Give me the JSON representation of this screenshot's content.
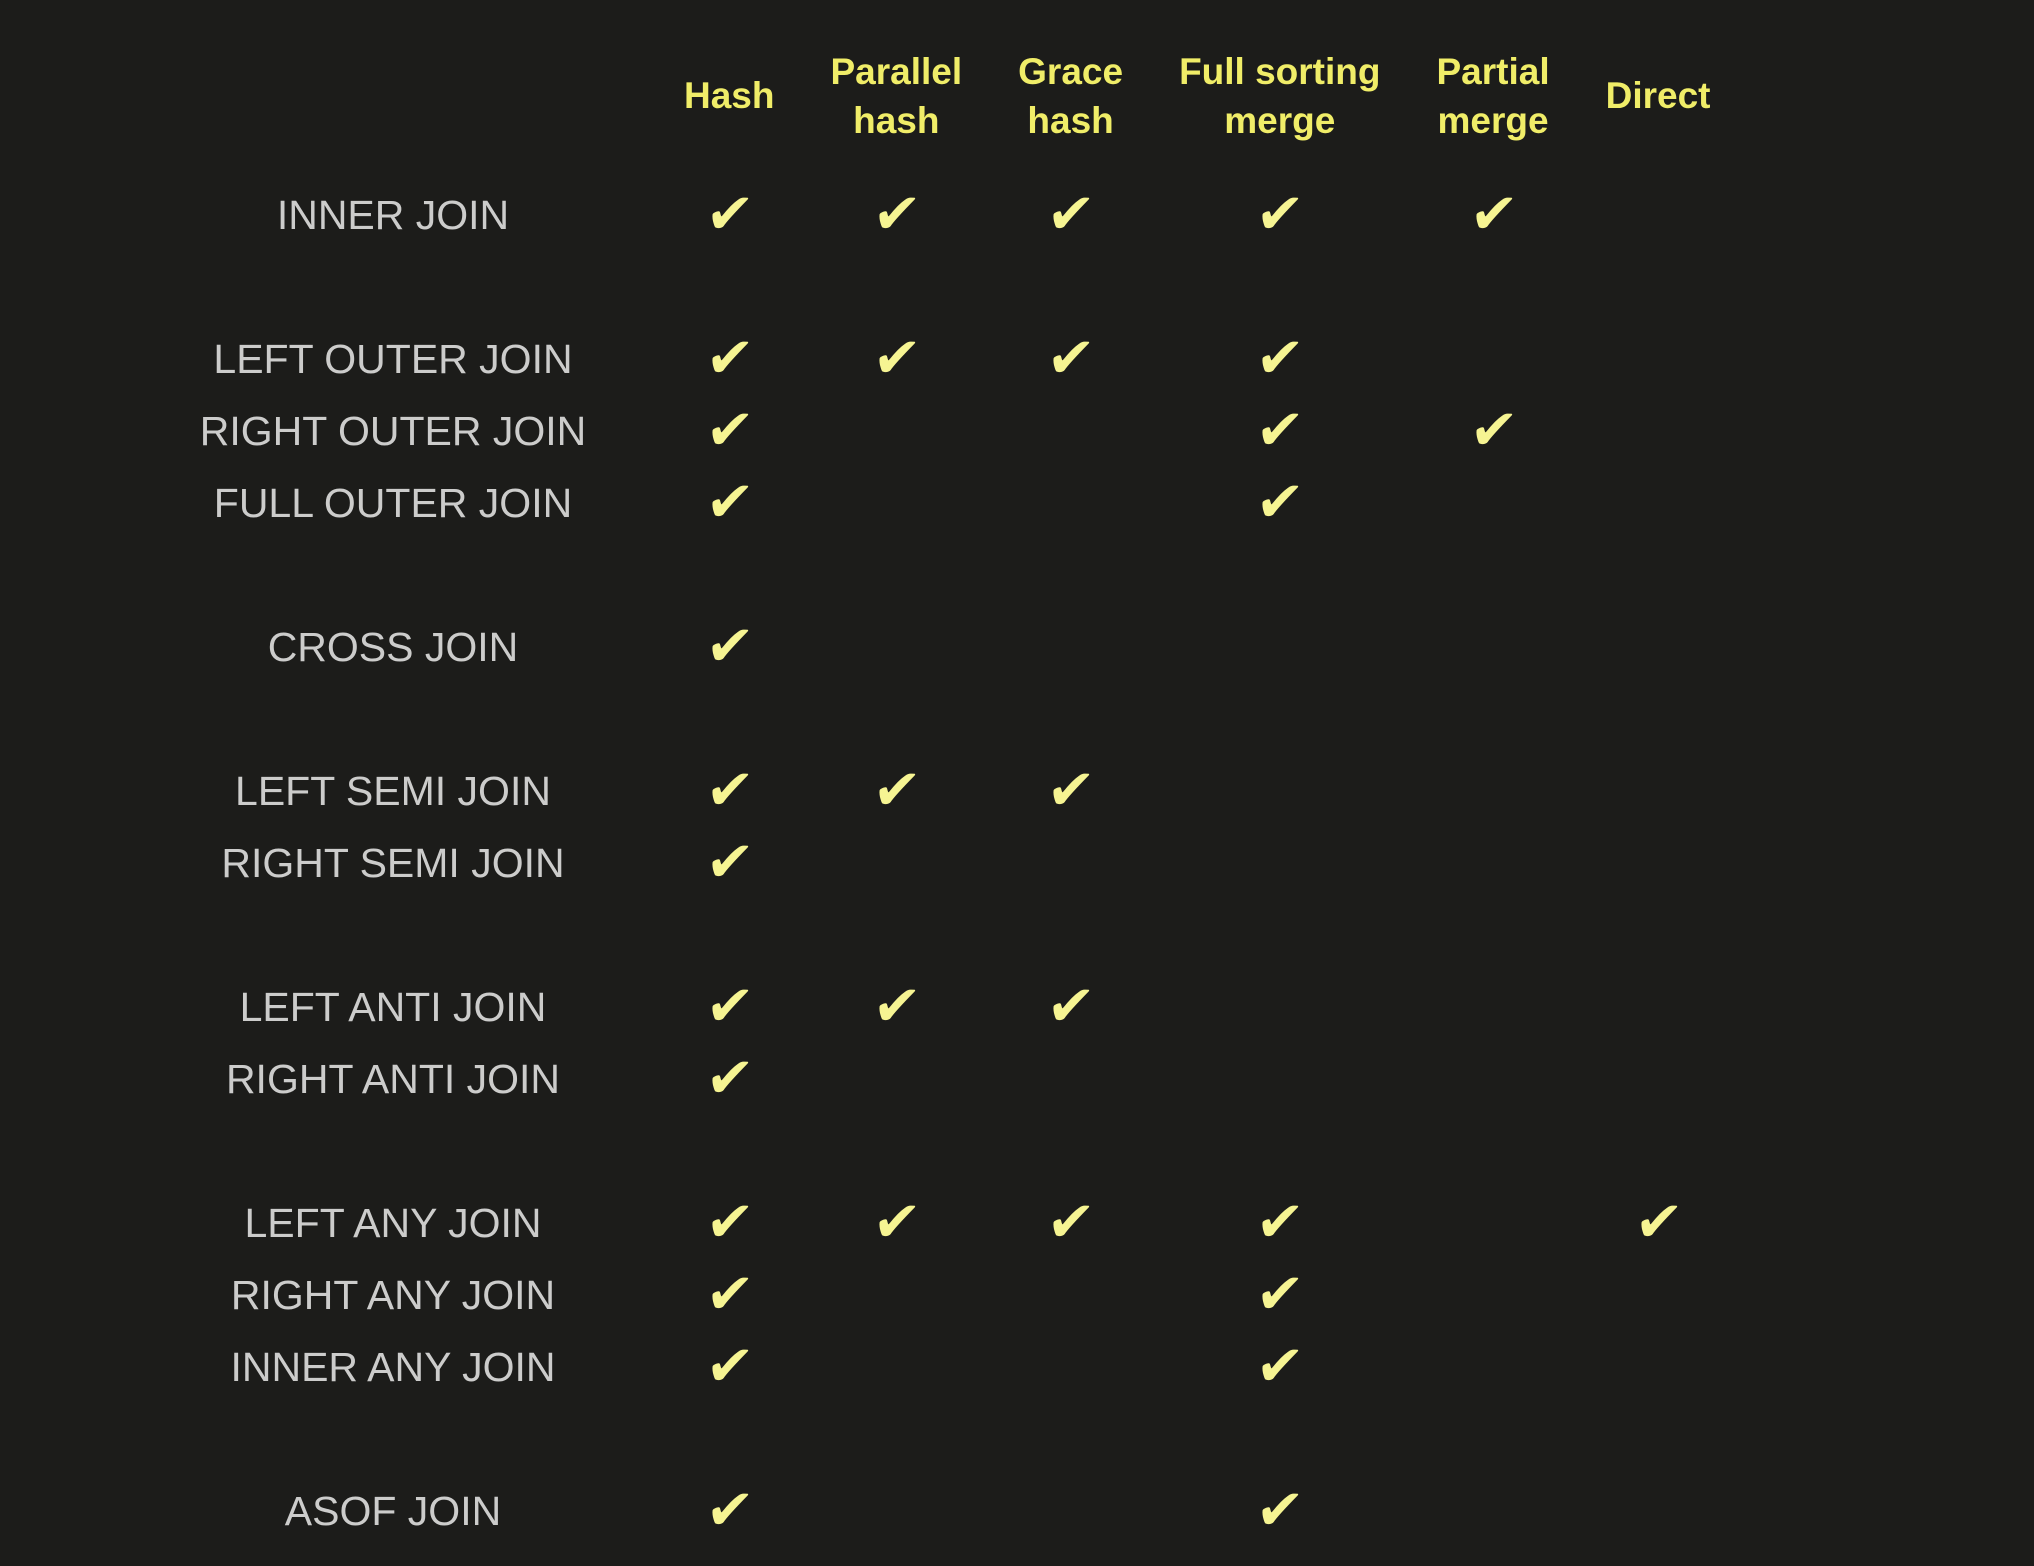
{
  "colors": {
    "background": "#1c1c1a",
    "header_text": "#f0ed68",
    "check": "#f6f492",
    "row_label": "#cccccb"
  },
  "matrix": {
    "check_glyph": "✔",
    "corner_label": "",
    "columns": [
      {
        "id": "hash",
        "label": "Hash",
        "lines": [
          "Hash"
        ]
      },
      {
        "id": "parallel-hash",
        "label": "Parallel hash",
        "lines": [
          "Parallel",
          "hash"
        ]
      },
      {
        "id": "grace-hash",
        "label": "Grace hash",
        "lines": [
          "Grace",
          "hash"
        ]
      },
      {
        "id": "full-sorting-merge",
        "label": "Full sorting merge",
        "lines": [
          "Full sorting",
          "merge"
        ]
      },
      {
        "id": "partial-merge",
        "label": "Partial merge",
        "lines": [
          "Partial",
          "merge"
        ]
      },
      {
        "id": "direct",
        "label": "Direct",
        "lines": [
          "Direct"
        ]
      }
    ],
    "rows": [
      {
        "label": "INNER JOIN",
        "spacer_before": false,
        "checks": [
          true,
          true,
          true,
          true,
          true,
          false
        ]
      },
      {
        "label": "LEFT OUTER JOIN",
        "spacer_before": true,
        "checks": [
          true,
          true,
          true,
          true,
          false,
          false
        ]
      },
      {
        "label": "RIGHT OUTER JOIN",
        "spacer_before": false,
        "checks": [
          true,
          false,
          false,
          true,
          true,
          false
        ]
      },
      {
        "label": "FULL OUTER JOIN",
        "spacer_before": false,
        "checks": [
          true,
          false,
          false,
          true,
          false,
          false
        ]
      },
      {
        "label": "CROSS JOIN",
        "spacer_before": true,
        "checks": [
          true,
          false,
          false,
          false,
          false,
          false
        ]
      },
      {
        "label": "LEFT SEMI JOIN",
        "spacer_before": true,
        "checks": [
          true,
          true,
          true,
          false,
          false,
          false
        ]
      },
      {
        "label": "RIGHT SEMI JOIN",
        "spacer_before": false,
        "checks": [
          true,
          false,
          false,
          false,
          false,
          false
        ]
      },
      {
        "label": "LEFT ANTI JOIN",
        "spacer_before": true,
        "checks": [
          true,
          true,
          true,
          false,
          false,
          false
        ]
      },
      {
        "label": "RIGHT ANTI JOIN",
        "spacer_before": false,
        "checks": [
          true,
          false,
          false,
          false,
          false,
          false
        ]
      },
      {
        "label": "LEFT ANY JOIN",
        "spacer_before": true,
        "checks": [
          true,
          true,
          true,
          true,
          false,
          true
        ]
      },
      {
        "label": "RIGHT ANY JOIN",
        "spacer_before": false,
        "checks": [
          true,
          false,
          false,
          true,
          false,
          false
        ]
      },
      {
        "label": "INNER ANY JOIN",
        "spacer_before": false,
        "checks": [
          true,
          false,
          false,
          true,
          false,
          false
        ]
      },
      {
        "label": "ASOF JOIN",
        "spacer_before": true,
        "checks": [
          true,
          false,
          false,
          true,
          false,
          false
        ]
      }
    ]
  }
}
